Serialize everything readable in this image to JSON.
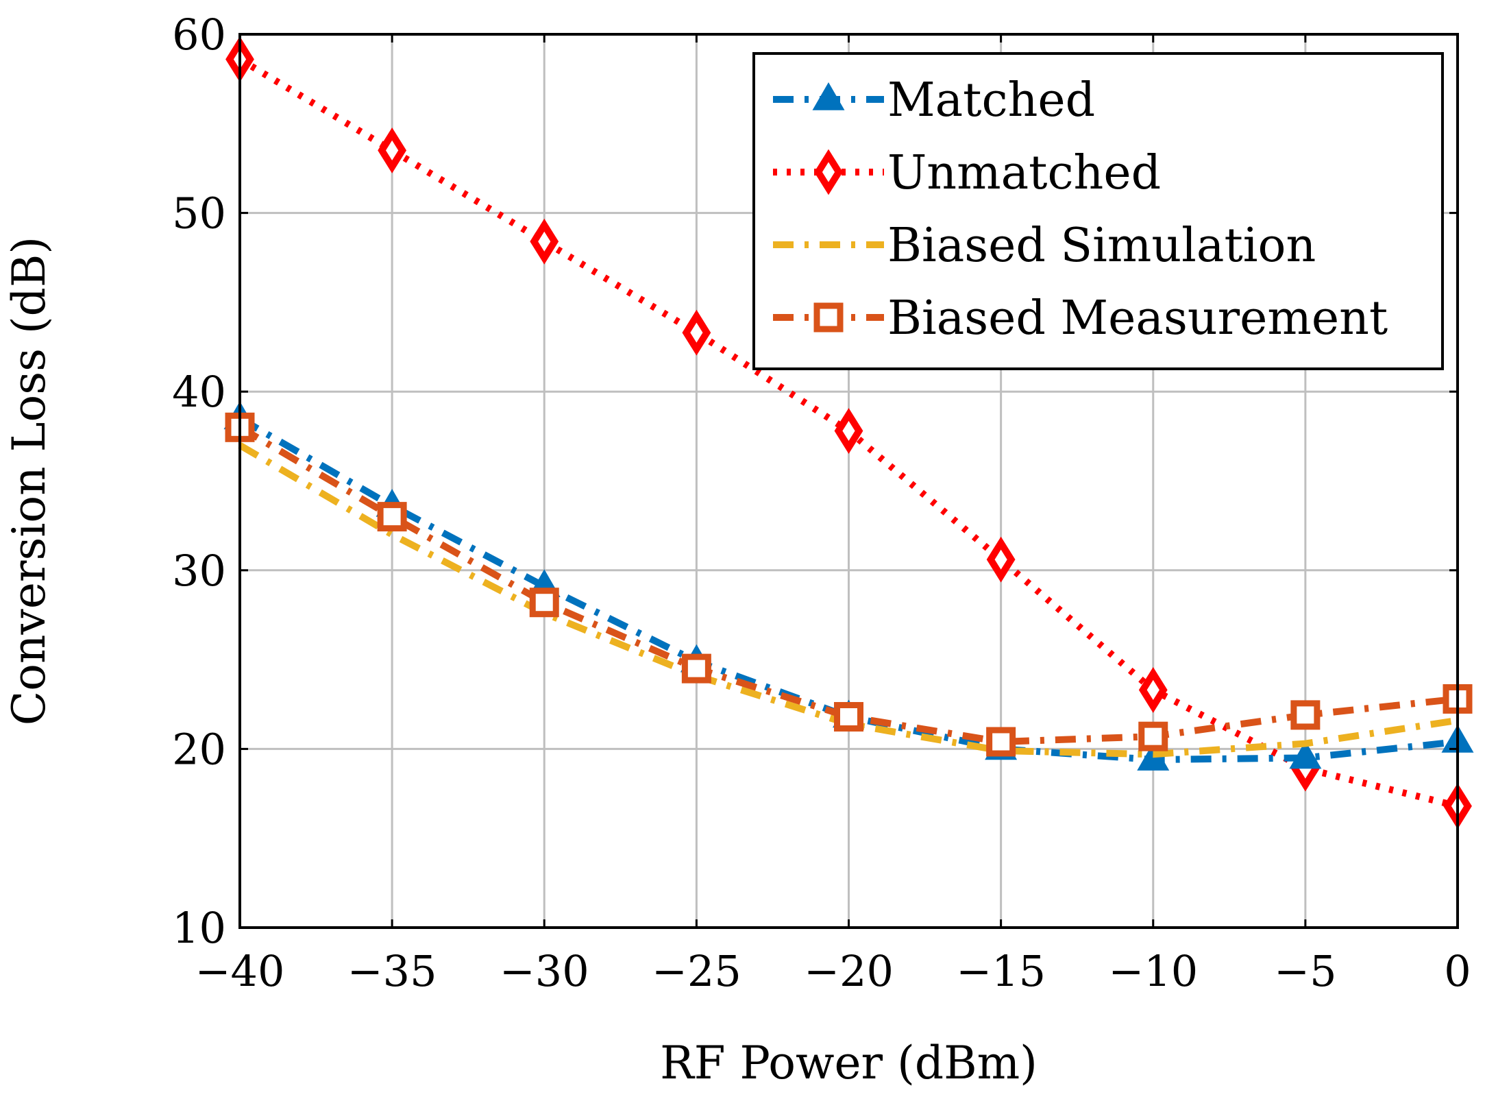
{
  "chart_data": {
    "type": "line",
    "title": "",
    "xlabel": "RF Power (dBm)",
    "ylabel": "Conversion Loss (dB)",
    "xlim": [
      -40,
      0
    ],
    "ylim": [
      10,
      60
    ],
    "xticks": [
      -40,
      -35,
      -30,
      -25,
      -20,
      -15,
      -10,
      -5,
      0
    ],
    "xtick_labels": [
      "−40",
      "−35",
      "−30",
      "−25",
      "−20",
      "−15",
      "−10",
      "−5",
      "0"
    ],
    "yticks": [
      10,
      20,
      30,
      40,
      50,
      60
    ],
    "ytick_labels": [
      "10",
      "20",
      "30",
      "40",
      "50",
      "60"
    ],
    "grid": true,
    "legend_position": "top-right",
    "x": [
      -40,
      -35,
      -30,
      -25,
      -20,
      -15,
      -10,
      -5,
      0
    ],
    "series": [
      {
        "name": "Matched",
        "color": "#0072BD",
        "line_style": "dash-dot",
        "marker": "triangle",
        "values": [
          38.5,
          33.6,
          29.1,
          24.9,
          21.8,
          20.0,
          19.4,
          19.5,
          20.4
        ]
      },
      {
        "name": "Unmatched",
        "color": "#FF0000",
        "line_style": "dotted",
        "marker": "diamond",
        "values": [
          58.6,
          53.5,
          48.4,
          43.3,
          37.8,
          30.6,
          23.3,
          18.9,
          16.8
        ]
      },
      {
        "name": "Biased Simulation",
        "color": "#EDB120",
        "line_style": "dash-dot",
        "marker": "none",
        "values": [
          37.0,
          32.0,
          27.6,
          24.1,
          21.4,
          19.9,
          19.7,
          20.3,
          21.6
        ]
      },
      {
        "name": "Biased Measurement",
        "color": "#D95319",
        "line_style": "dash-dot",
        "marker": "square",
        "values": [
          38.0,
          33.0,
          28.2,
          24.5,
          21.8,
          20.4,
          20.7,
          21.9,
          22.8
        ]
      }
    ]
  }
}
